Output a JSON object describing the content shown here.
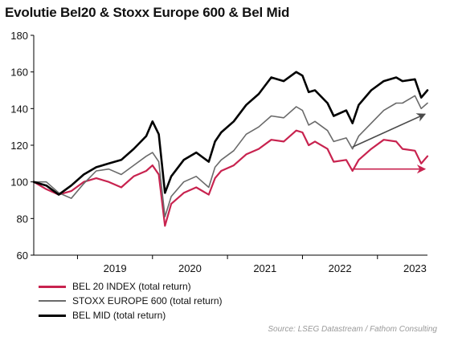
{
  "chart_data": {
    "type": "line",
    "title": "Evolutie Bel20 & Stoxx Europe 600 & Bel Mid",
    "xlabel": "",
    "ylabel": "",
    "x_tick_labels": [
      "2019",
      "2020",
      "2021",
      "2022",
      "2023"
    ],
    "xlim": [
      "2018-06",
      "2023-09"
    ],
    "ylim": [
      60,
      180
    ],
    "y_ticks": [
      60,
      80,
      100,
      120,
      140,
      160,
      180
    ],
    "grid": false,
    "legend_position": "bottom-left",
    "series": [
      {
        "name": "BEL 20 INDEX (total return)",
        "color": "#c8234f",
        "points": [
          [
            "2018-06",
            100
          ],
          [
            "2018-08",
            96
          ],
          [
            "2018-10",
            93
          ],
          [
            "2018-12",
            95
          ],
          [
            "2019-02",
            100
          ],
          [
            "2019-04",
            102
          ],
          [
            "2019-06",
            100
          ],
          [
            "2019-08",
            97
          ],
          [
            "2019-10",
            103
          ],
          [
            "2019-12",
            106
          ],
          [
            "2020-01",
            109
          ],
          [
            "2020-02",
            104
          ],
          [
            "2020-03",
            76
          ],
          [
            "2020-04",
            88
          ],
          [
            "2020-06",
            94
          ],
          [
            "2020-08",
            97
          ],
          [
            "2020-10",
            93
          ],
          [
            "2020-11",
            102
          ],
          [
            "2020-12",
            106
          ],
          [
            "2021-02",
            109
          ],
          [
            "2021-04",
            115
          ],
          [
            "2021-06",
            118
          ],
          [
            "2021-08",
            123
          ],
          [
            "2021-10",
            122
          ],
          [
            "2021-12",
            128
          ],
          [
            "2022-01",
            127
          ],
          [
            "2022-02",
            120
          ],
          [
            "2022-03",
            122
          ],
          [
            "2022-05",
            118
          ],
          [
            "2022-06",
            111
          ],
          [
            "2022-08",
            112
          ],
          [
            "2022-09",
            106
          ],
          [
            "2022-10",
            112
          ],
          [
            "2022-12",
            118
          ],
          [
            "2023-02",
            123
          ],
          [
            "2023-04",
            122
          ],
          [
            "2023-05",
            118
          ],
          [
            "2023-07",
            117
          ],
          [
            "2023-08",
            110
          ],
          [
            "2023-09",
            114
          ]
        ]
      },
      {
        "name": "STOXX EUROPE 600 (total return)",
        "color": "#6a6a6a",
        "points": [
          [
            "2018-06",
            100
          ],
          [
            "2018-08",
            100
          ],
          [
            "2018-10",
            94
          ],
          [
            "2018-12",
            91
          ],
          [
            "2019-02",
            99
          ],
          [
            "2019-04",
            106
          ],
          [
            "2019-06",
            107
          ],
          [
            "2019-08",
            104
          ],
          [
            "2019-10",
            109
          ],
          [
            "2019-12",
            114
          ],
          [
            "2020-01",
            116
          ],
          [
            "2020-02",
            111
          ],
          [
            "2020-03",
            81
          ],
          [
            "2020-04",
            92
          ],
          [
            "2020-06",
            100
          ],
          [
            "2020-08",
            103
          ],
          [
            "2020-10",
            97
          ],
          [
            "2020-11",
            108
          ],
          [
            "2020-12",
            112
          ],
          [
            "2021-02",
            117
          ],
          [
            "2021-04",
            126
          ],
          [
            "2021-06",
            130
          ],
          [
            "2021-08",
            136
          ],
          [
            "2021-10",
            135
          ],
          [
            "2021-12",
            141
          ],
          [
            "2022-01",
            139
          ],
          [
            "2022-02",
            131
          ],
          [
            "2022-03",
            133
          ],
          [
            "2022-05",
            128
          ],
          [
            "2022-06",
            122
          ],
          [
            "2022-08",
            124
          ],
          [
            "2022-09",
            118
          ],
          [
            "2022-10",
            125
          ],
          [
            "2022-12",
            132
          ],
          [
            "2023-02",
            139
          ],
          [
            "2023-04",
            143
          ],
          [
            "2023-05",
            143
          ],
          [
            "2023-07",
            147
          ],
          [
            "2023-08",
            140
          ],
          [
            "2023-09",
            143
          ]
        ]
      },
      {
        "name": "BEL MID (total return)",
        "color": "#000000",
        "points": [
          [
            "2018-06",
            100
          ],
          [
            "2018-08",
            98
          ],
          [
            "2018-10",
            93
          ],
          [
            "2018-12",
            98
          ],
          [
            "2019-02",
            104
          ],
          [
            "2019-04",
            108
          ],
          [
            "2019-06",
            110
          ],
          [
            "2019-08",
            112
          ],
          [
            "2019-10",
            118
          ],
          [
            "2019-12",
            125
          ],
          [
            "2020-01",
            133
          ],
          [
            "2020-02",
            126
          ],
          [
            "2020-03",
            94
          ],
          [
            "2020-04",
            103
          ],
          [
            "2020-06",
            112
          ],
          [
            "2020-08",
            116
          ],
          [
            "2020-10",
            111
          ],
          [
            "2020-11",
            122
          ],
          [
            "2020-12",
            127
          ],
          [
            "2021-02",
            133
          ],
          [
            "2021-04",
            142
          ],
          [
            "2021-06",
            148
          ],
          [
            "2021-08",
            157
          ],
          [
            "2021-10",
            155
          ],
          [
            "2021-12",
            160
          ],
          [
            "2022-01",
            158
          ],
          [
            "2022-02",
            149
          ],
          [
            "2022-03",
            150
          ],
          [
            "2022-05",
            143
          ],
          [
            "2022-06",
            136
          ],
          [
            "2022-08",
            139
          ],
          [
            "2022-09",
            132
          ],
          [
            "2022-10",
            142
          ],
          [
            "2022-12",
            150
          ],
          [
            "2023-02",
            155
          ],
          [
            "2023-04",
            157
          ],
          [
            "2023-05",
            155
          ],
          [
            "2023-07",
            156
          ],
          [
            "2023-08",
            146
          ],
          [
            "2023-09",
            150
          ]
        ]
      }
    ],
    "annotations": [
      {
        "type": "arrow",
        "color": "#4a4a4a",
        "from": [
          "2022-09",
          119
        ],
        "to": [
          "2023-09",
          137
        ]
      },
      {
        "type": "arrow",
        "color": "#c8234f",
        "from": [
          "2022-09",
          107
        ],
        "to": [
          "2023-09",
          107
        ]
      }
    ],
    "source": "Source: LSEG Datastream / Fathom Consulting"
  }
}
